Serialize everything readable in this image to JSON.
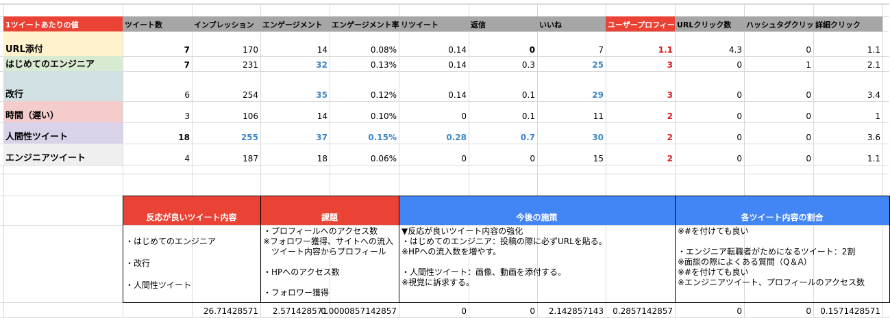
{
  "table": {
    "columns": [
      "1ツイートあたりの値",
      "ツイート数",
      "インプレッション",
      "エンゲージメント",
      "エンゲージメント率",
      "リツイート",
      "返信",
      "いいね",
      "ユーザープロフィー",
      "URLクリック数",
      "ハッシュタグクリッ",
      "詳細クリック"
    ],
    "rows": [
      {
        "label": "URL添付",
        "color": "#fff2cc",
        "values": [
          "7",
          "170",
          "14",
          "0.08%",
          "0.14",
          "0",
          "7",
          "1.1",
          "4.3",
          "0",
          "1.1"
        ]
      },
      {
        "label": "はじめてのエンジニア",
        "color": "#d9ead3",
        "values": [
          "7",
          "231",
          "32",
          "0.13%",
          "0.14",
          "0.3",
          "25",
          "3",
          "0",
          "1",
          "2.1"
        ]
      },
      {
        "label": "改行",
        "color": "#d0e0e3",
        "values": [
          "6",
          "254",
          "35",
          "0.12%",
          "0.14",
          "0.1",
          "29",
          "3",
          "0",
          "0",
          "3.4"
        ]
      },
      {
        "label": "時間（遅い）",
        "color": "#f4cccc",
        "values": [
          "3",
          "106",
          "14",
          "0.10%",
          "0",
          "0.1",
          "11",
          "2",
          "0",
          "0",
          "1"
        ]
      },
      {
        "label": "人間性ツイート",
        "color": "#d9d2e9",
        "values": [
          "18",
          "255",
          "37",
          "0.15%",
          "0.28",
          "0.7",
          "30",
          "2",
          "0",
          "0",
          "3.6"
        ]
      },
      {
        "label": "エンジニアツイート",
        "color": "#efefef",
        "values": [
          "4",
          "187",
          "18",
          "0.06%",
          "0",
          "0",
          "15",
          "2",
          "0",
          "0",
          "1.1"
        ]
      }
    ]
  },
  "summary": {
    "good_tweets": {
      "title": "反応が良いツイート内容",
      "color": "#ea4335",
      "lines": [
        "・はじめてのエンジニア",
        "",
        "・改行",
        "",
        "・人間性ツイート"
      ]
    },
    "issues": {
      "title": "課題",
      "color": "#ea4335",
      "lines": [
        "・プロフィールへのアクセス数",
        "※フォロワー獲得、サイトへの流入",
        "　ツイート内容からプロフィール",
        "",
        "・HPへのアクセス数",
        "",
        "・フォロワー獲得"
      ]
    },
    "plans": {
      "title": "今後の施策",
      "color": "#4285f4",
      "lines": [
        "▼反応が良いツイート内容の強化",
        "・はじめてのエンジニア：投稿の際に必ずURLを貼る。",
        "※HPへの流入数を増やす。",
        "",
        "・人間性ツイート：画像、動画を添付する。",
        "※視覚に訴求する。"
      ]
    },
    "ratios": {
      "title": "各ツイート内容の割合",
      "color": "#4285f4",
      "lines": [
        "※#を付けても良い",
        "",
        "・エンジニア転職者がためになるツイート：2割",
        "※面談の際によくある質問（Q＆A）",
        "※#を付けても良い",
        "※エンジニアツイート、プロフィールのアクセス数"
      ]
    }
  },
  "bottom_values": [
    "26.71428571",
    "2.571428571",
    "0.0000857142857",
    "0",
    "0",
    "2.142857143",
    "0.2857142857",
    "0",
    "0",
    "0.1571428571"
  ]
}
